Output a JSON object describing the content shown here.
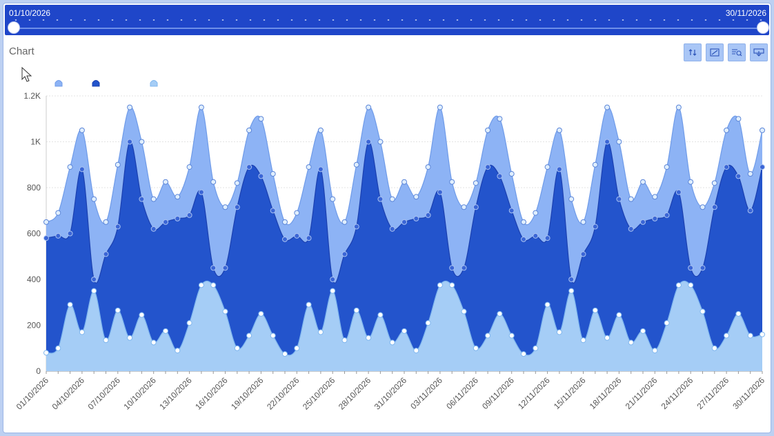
{
  "range": {
    "start_label": "01/10/2026",
    "end_label": "30/11/2026"
  },
  "panel": {
    "title": "Chart"
  },
  "toolbar": {
    "icons": [
      "sort-icon",
      "zoom-area-icon",
      "zoom-reset-icon",
      "download-icon"
    ]
  },
  "colors": {
    "range_bar": "#1f46c9",
    "series_a": "#8db3f5",
    "series_b": "#2354cc",
    "series_c": "#a5cdf6"
  },
  "chart_data": {
    "type": "area",
    "stacked": false,
    "x": [
      "01/10/2026",
      "02/10/2026",
      "03/10/2026",
      "04/10/2026",
      "05/10/2026",
      "06/10/2026",
      "07/10/2026",
      "08/10/2026",
      "09/10/2026",
      "10/10/2026",
      "11/10/2026",
      "12/10/2026",
      "13/10/2026",
      "14/10/2026",
      "15/10/2026",
      "16/10/2026",
      "17/10/2026",
      "18/10/2026",
      "19/10/2026",
      "20/10/2026",
      "21/10/2026",
      "22/10/2026",
      "23/10/2026",
      "24/10/2026",
      "25/10/2026",
      "26/10/2026",
      "27/10/2026",
      "28/10/2026",
      "29/10/2026",
      "30/10/2026",
      "31/10/2026",
      "01/11/2026",
      "02/11/2026",
      "03/11/2026",
      "04/11/2026",
      "05/11/2026",
      "06/11/2026",
      "07/11/2026",
      "08/11/2026",
      "09/11/2026",
      "10/11/2026",
      "11/11/2026",
      "12/11/2026",
      "13/11/2026",
      "14/11/2026",
      "15/11/2026",
      "16/11/2026",
      "17/11/2026",
      "18/11/2026",
      "19/11/2026",
      "20/11/2026",
      "21/11/2026",
      "22/11/2026",
      "23/11/2026",
      "24/11/2026",
      "25/11/2026",
      "26/11/2026",
      "27/11/2026",
      "28/11/2026",
      "29/11/2026",
      "30/11/2026"
    ],
    "x_tick_labels": [
      "01/10/2026",
      "04/10/2026",
      "07/10/2026",
      "10/10/2026",
      "13/10/2026",
      "16/10/2026",
      "19/10/2026",
      "22/10/2026",
      "25/10/2026",
      "28/10/2026",
      "31/10/2026",
      "03/11/2026",
      "06/11/2026",
      "09/11/2026",
      "12/11/2026",
      "15/11/2026",
      "18/11/2026",
      "21/11/2026",
      "24/11/2026",
      "27/11/2026",
      "30/11/2026"
    ],
    "series": [
      {
        "values": [
          650,
          690,
          890,
          1050,
          750,
          650,
          900,
          1150,
          1000,
          750,
          825,
          760,
          890,
          1150,
          825,
          715,
          820,
          1050,
          1100,
          860,
          650,
          690,
          890,
          1050,
          750,
          650,
          900,
          1150,
          1000,
          750,
          825,
          760,
          890,
          1150,
          825,
          715,
          820,
          1050,
          1100,
          860,
          650,
          690,
          890,
          1050,
          750,
          650,
          900,
          1150,
          1000,
          750,
          825,
          760,
          890,
          1150,
          825,
          715,
          820,
          1050,
          1100,
          860,
          1050
        ]
      },
      {
        "values": [
          580,
          590,
          600,
          880,
          400,
          510,
          630,
          1000,
          750,
          620,
          650,
          665,
          680,
          780,
          450,
          450,
          715,
          890,
          850,
          700,
          575,
          590,
          580,
          880,
          400,
          510,
          630,
          1000,
          750,
          620,
          650,
          665,
          680,
          780,
          450,
          450,
          715,
          890,
          850,
          700,
          575,
          590,
          580,
          880,
          400,
          510,
          630,
          1000,
          750,
          620,
          650,
          665,
          680,
          780,
          450,
          450,
          715,
          890,
          850,
          700,
          890
        ]
      },
      {
        "values": [
          80,
          100,
          290,
          170,
          350,
          135,
          265,
          145,
          245,
          125,
          175,
          90,
          210,
          375,
          375,
          260,
          100,
          155,
          250,
          155,
          75,
          100,
          290,
          170,
          350,
          135,
          265,
          145,
          245,
          125,
          175,
          90,
          210,
          375,
          375,
          260,
          100,
          155,
          250,
          155,
          75,
          100,
          290,
          170,
          350,
          135,
          265,
          145,
          245,
          125,
          175,
          90,
          210,
          375,
          375,
          260,
          100,
          155,
          250,
          155,
          160
        ]
      }
    ],
    "y_ticks": [
      "0",
      "200",
      "400",
      "600",
      "800",
      "1K",
      "1.2K"
    ],
    "ylim": [
      0,
      1200
    ],
    "grid": true,
    "legend_position": "top-left"
  }
}
